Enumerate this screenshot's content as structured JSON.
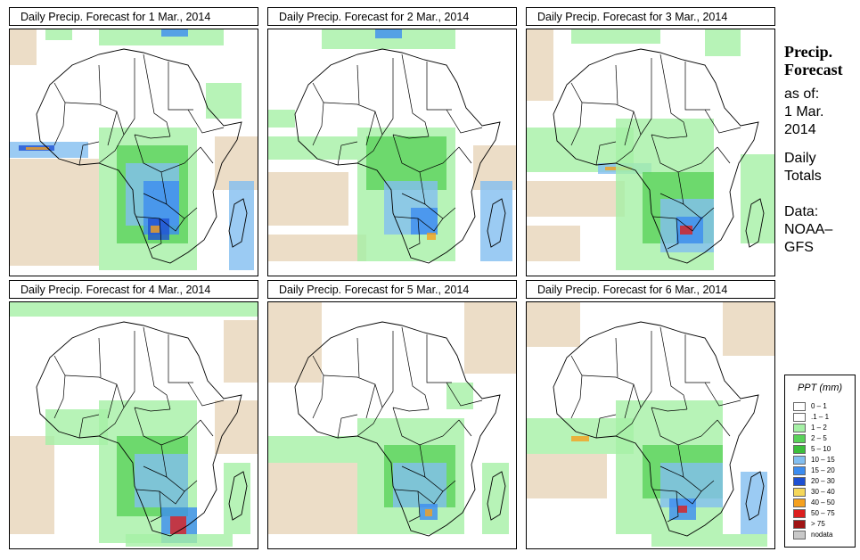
{
  "panels": [
    {
      "title": "Daily Precip. Forecast for  1 Mar., 2014"
    },
    {
      "title": "Daily Precip. Forecast for  2 Mar., 2014"
    },
    {
      "title": "Daily Precip. Forecast for  3 Mar., 2014"
    },
    {
      "title": "Daily Precip. Forecast for  4 Mar., 2014"
    },
    {
      "title": "Daily Precip. Forecast for  5 Mar., 2014"
    },
    {
      "title": "Daily Precip. Forecast for  6 Mar., 2014"
    }
  ],
  "sidebar": {
    "title_line1": "Precip.",
    "title_line2": "Forecast",
    "asof": "as of:",
    "date_line1": "1 Mar.",
    "date_line2": "2014",
    "totals_line1": "Daily",
    "totals_line2": "Totals",
    "data_line1": "Data:",
    "data_line2": "NOAA–",
    "data_line3": "GFS"
  },
  "legend": {
    "title": "PPT (mm)",
    "items": [
      {
        "label": "0 – 1",
        "color": "#ffffff"
      },
      {
        "label": ".1 – 1",
        "color": "#ffffff"
      },
      {
        "label": "1 – 2",
        "color": "#a5f0a5"
      },
      {
        "label": "2 – 5",
        "color": "#5ad25a"
      },
      {
        "label": "5 – 10",
        "color": "#3cbe3c"
      },
      {
        "label": "10 – 15",
        "color": "#82bef0"
      },
      {
        "label": "15 – 20",
        "color": "#3c8cf0"
      },
      {
        "label": "20 – 30",
        "color": "#1e50d2"
      },
      {
        "label": "30 – 40",
        "color": "#f5d75a"
      },
      {
        "label": "40 – 50",
        "color": "#f5a01e"
      },
      {
        "label": "50 – 75",
        "color": "#dc1e1e"
      },
      {
        "label": "> 75",
        "color": "#a01414"
      },
      {
        "label": "nodata",
        "color": "#c8c8c8"
      }
    ]
  },
  "colors": {
    "dry_zone": "#e6d2b4",
    "light": "#a5f0a5",
    "moderate": "#5ad25a",
    "wet": "#82bef0",
    "heavy": "#3c8cf0",
    "very_heavy": "#1e50d2",
    "extreme": "#f5a01e",
    "peak": "#dc1e1e"
  }
}
